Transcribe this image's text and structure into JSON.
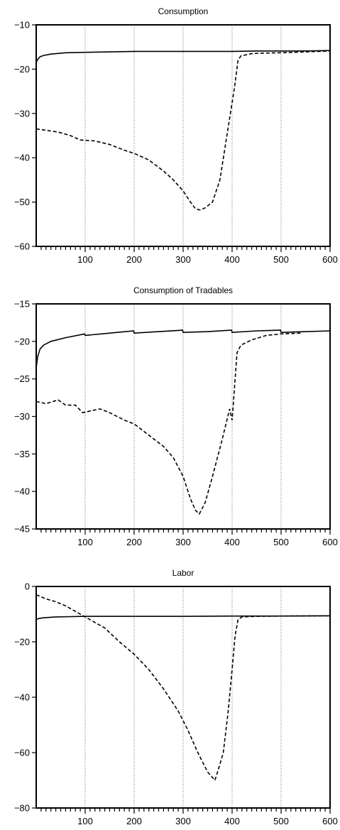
{
  "chart_data": [
    {
      "type": "line",
      "title": "Consumption",
      "xlabel": "",
      "ylabel": "",
      "xlim": [
        0,
        600
      ],
      "ylim": [
        -60,
        -10
      ],
      "x_ticks": [
        100,
        200,
        300,
        400,
        500,
        600
      ],
      "y_ticks": [
        -10,
        -20,
        -30,
        -40,
        -50,
        -60
      ],
      "grid": "vertical dotted",
      "series": [
        {
          "style": "solid",
          "points": [
            [
              0,
              -18.5
            ],
            [
              3,
              -17.8
            ],
            [
              8,
              -17.2
            ],
            [
              15,
              -16.9
            ],
            [
              30,
              -16.6
            ],
            [
              60,
              -16.3
            ],
            [
              100,
              -16.2
            ],
            [
              150,
              -16.1
            ],
            [
              200,
              -16.0
            ],
            [
              250,
              -16.0
            ],
            [
              300,
              -16.0
            ],
            [
              350,
              -16.0
            ],
            [
              400,
              -16.0
            ],
            [
              450,
              -15.9
            ],
            [
              500,
              -15.9
            ],
            [
              550,
              -15.9
            ],
            [
              600,
              -15.8
            ]
          ]
        },
        {
          "style": "dashed",
          "points": [
            [
              0,
              -33.5
            ],
            [
              20,
              -33.8
            ],
            [
              45,
              -34.2
            ],
            [
              70,
              -35.0
            ],
            [
              90,
              -36.0
            ],
            [
              120,
              -36.2
            ],
            [
              150,
              -37.0
            ],
            [
              180,
              -38.3
            ],
            [
              200,
              -39.0
            ],
            [
              230,
              -40.5
            ],
            [
              260,
              -43.0
            ],
            [
              280,
              -45.0
            ],
            [
              300,
              -47.5
            ],
            [
              315,
              -50.0
            ],
            [
              325,
              -51.5
            ],
            [
              335,
              -51.8
            ],
            [
              345,
              -51.3
            ],
            [
              360,
              -50.0
            ],
            [
              375,
              -45.0
            ],
            [
              385,
              -38.0
            ],
            [
              395,
              -31.0
            ],
            [
              405,
              -24.0
            ],
            [
              412,
              -18.0
            ],
            [
              418,
              -17.0
            ],
            [
              440,
              -16.5
            ],
            [
              460,
              -16.4
            ],
            [
              500,
              -16.3
            ],
            [
              550,
              -16.1
            ],
            [
              600,
              -15.9
            ]
          ]
        }
      ]
    },
    {
      "type": "line",
      "title": "Consumption of Tradables",
      "xlabel": "",
      "ylabel": "",
      "xlim": [
        0,
        600
      ],
      "ylim": [
        -45,
        -15
      ],
      "x_ticks": [
        100,
        200,
        300,
        400,
        500,
        600
      ],
      "y_ticks": [
        -15,
        -20,
        -25,
        -30,
        -35,
        -40,
        -45
      ],
      "grid": "vertical dotted",
      "series": [
        {
          "style": "solid",
          "points": [
            [
              0,
              -23.5
            ],
            [
              3,
              -22.0
            ],
            [
              8,
              -21.0
            ],
            [
              15,
              -20.5
            ],
            [
              30,
              -20.0
            ],
            [
              60,
              -19.5
            ],
            [
              99,
              -19.0
            ],
            [
              100,
              -19.2
            ],
            [
              150,
              -18.9
            ],
            [
              199,
              -18.6
            ],
            [
              200,
              -18.9
            ],
            [
              250,
              -18.7
            ],
            [
              299,
              -18.5
            ],
            [
              300,
              -18.8
            ],
            [
              350,
              -18.7
            ],
            [
              399,
              -18.5
            ],
            [
              400,
              -18.8
            ],
            [
              450,
              -18.6
            ],
            [
              499,
              -18.5
            ],
            [
              500,
              -18.8
            ],
            [
              550,
              -18.7
            ],
            [
              600,
              -18.6
            ]
          ]
        },
        {
          "style": "dashed",
          "points": [
            [
              0,
              -28.0
            ],
            [
              20,
              -28.3
            ],
            [
              45,
              -27.8
            ],
            [
              60,
              -28.5
            ],
            [
              80,
              -28.5
            ],
            [
              95,
              -29.5
            ],
            [
              130,
              -29.0
            ],
            [
              150,
              -29.5
            ],
            [
              180,
              -30.5
            ],
            [
              200,
              -31.0
            ],
            [
              230,
              -32.5
            ],
            [
              260,
              -34.0
            ],
            [
              280,
              -35.5
            ],
            [
              300,
              -38.0
            ],
            [
              315,
              -41.0
            ],
            [
              325,
              -42.5
            ],
            [
              333,
              -43.0
            ],
            [
              345,
              -41.5
            ],
            [
              360,
              -38.0
            ],
            [
              380,
              -33.0
            ],
            [
              395,
              -29.0
            ],
            [
              400,
              -30.5
            ],
            [
              405,
              -26.0
            ],
            [
              410,
              -21.5
            ],
            [
              418,
              -20.5
            ],
            [
              440,
              -19.8
            ],
            [
              470,
              -19.2
            ],
            [
              500,
              -19.0
            ],
            [
              540,
              -18.9
            ]
          ]
        }
      ]
    },
    {
      "type": "line",
      "title": "Labor",
      "xlabel": "",
      "ylabel": "",
      "xlim": [
        0,
        600
      ],
      "ylim": [
        -80,
        0
      ],
      "x_ticks": [
        100,
        200,
        300,
        400,
        500,
        600
      ],
      "y_ticks": [
        0,
        -20,
        -40,
        -60,
        -80
      ],
      "grid": "vertical dotted",
      "series": [
        {
          "style": "solid",
          "points": [
            [
              0,
              -12.0
            ],
            [
              5,
              -11.6
            ],
            [
              15,
              -11.3
            ],
            [
              40,
              -11.0
            ],
            [
              70,
              -10.9
            ],
            [
              100,
              -10.8
            ],
            [
              150,
              -10.8
            ],
            [
              200,
              -10.8
            ],
            [
              300,
              -10.8
            ],
            [
              400,
              -10.7
            ],
            [
              500,
              -10.7
            ],
            [
              600,
              -10.6
            ]
          ]
        },
        {
          "style": "dashed",
          "points": [
            [
              0,
              -3.0
            ],
            [
              20,
              -4.5
            ],
            [
              40,
              -5.5
            ],
            [
              60,
              -7.0
            ],
            [
              80,
              -9.0
            ],
            [
              100,
              -11.0
            ],
            [
              140,
              -15.0
            ],
            [
              170,
              -20.0
            ],
            [
              200,
              -24.5
            ],
            [
              230,
              -30.0
            ],
            [
              260,
              -37.0
            ],
            [
              290,
              -45.0
            ],
            [
              310,
              -52.0
            ],
            [
              330,
              -60.0
            ],
            [
              350,
              -67.0
            ],
            [
              365,
              -70.0
            ],
            [
              372,
              -66.0
            ],
            [
              382,
              -60.0
            ],
            [
              392,
              -45.0
            ],
            [
              400,
              -30.0
            ],
            [
              406,
              -18.0
            ],
            [
              412,
              -12.0
            ],
            [
              420,
              -11.0
            ],
            [
              450,
              -10.8
            ],
            [
              500,
              -10.7
            ],
            [
              600,
              -10.6
            ]
          ]
        }
      ]
    }
  ]
}
